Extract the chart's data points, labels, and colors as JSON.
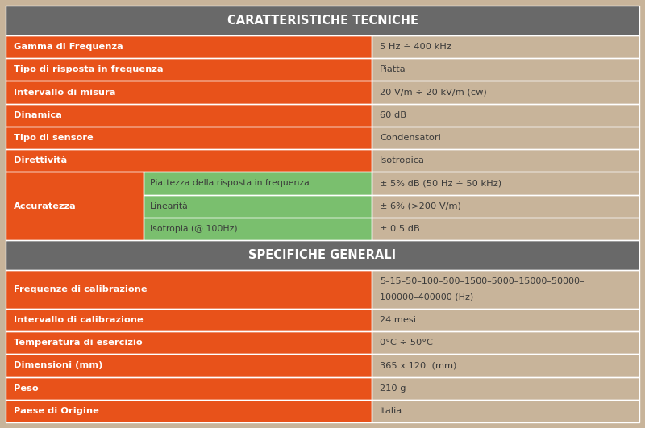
{
  "title1": "CARATTERISTICHE TECNICHE",
  "title2": "SPECIFICHE GENERALI",
  "header_bg": "#696969",
  "header_text": "#ffffff",
  "row_orange": "#e8521a",
  "row_tan": "#c8b49a",
  "row_green": "#7abf6e",
  "section1_rows": [
    {
      "label": "Gamma di Frequenza",
      "value": "5 Hz ÷ 400 kHz"
    },
    {
      "label": "Tipo di risposta in frequenza",
      "value": "Piatta"
    },
    {
      "label": "Intervallo di misura",
      "value": "20 V/m ÷ 20 kV/m (cw)"
    },
    {
      "label": "Dinamica",
      "value": "60 dB"
    },
    {
      "label": "Tipo di sensore",
      "value": "Condensatori"
    },
    {
      "label": "Direttività",
      "value": "Isotropica"
    }
  ],
  "accuratezza_label": "Accuratezza",
  "accuratezza_subs": [
    {
      "label": "Piattezza della risposta in frequenza",
      "value": "± 5% dB (50 Hz ÷ 50 kHz)"
    },
    {
      "label": "Linearità",
      "value": "± 6% (>200 V/m)"
    },
    {
      "label": "Isotropia (@ 100Hz)",
      "value": "± 0.5 dB"
    }
  ],
  "section2_rows": [
    {
      "label": "Frequenze di calibrazione",
      "value1": "5–15–50–100–500–1500–5000–15000–50000–",
      "value2": "100000–400000 (Hz)",
      "double": true
    },
    {
      "label": "Intervallo di calibrazione",
      "value": "24 mesi",
      "double": false
    },
    {
      "label": "Temperatura di esercizio",
      "value": "0°C ÷ 50°C",
      "double": false
    },
    {
      "label": "Dimensioni (mm)",
      "value": "365 x 120  (mm)",
      "double": false
    },
    {
      "label": "Peso",
      "value": "210 g",
      "double": false
    },
    {
      "label": "Paese di Origine",
      "value": "Italia",
      "double": false
    }
  ],
  "text_white": "#ffffff",
  "text_dark": "#3a3a3a",
  "border_color": "#ffffff",
  "col_split": 0.578,
  "acc_col_split": 0.218,
  "fig_bg": "#c8b49a"
}
